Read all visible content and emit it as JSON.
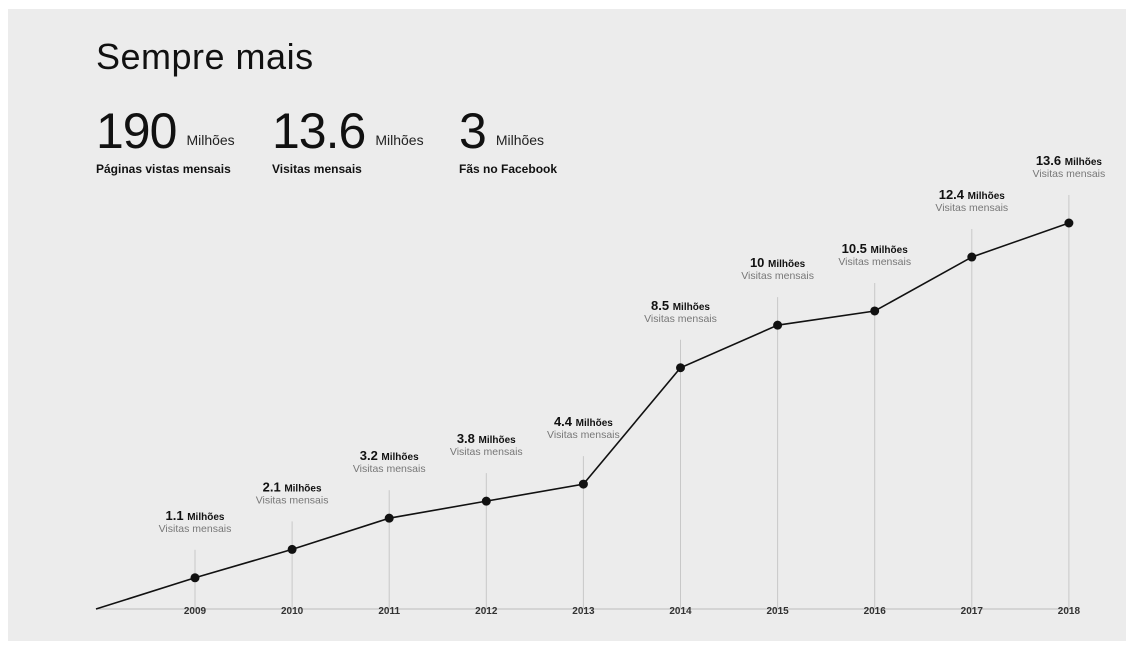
{
  "title": "Sempre mais",
  "stats": [
    {
      "value": "190",
      "unit": "Milhões",
      "label": "Páginas vistas mensais"
    },
    {
      "value": "13.6",
      "unit": "Milhões",
      "label": "Visitas mensais"
    },
    {
      "value": "3",
      "unit": "Milhões",
      "label": "Fãs no Facebook"
    }
  ],
  "chart_data": {
    "type": "line",
    "title": "",
    "xlabel": "",
    "ylabel": "",
    "x": [
      "2009",
      "2010",
      "2011",
      "2012",
      "2013",
      "2014",
      "2015",
      "2016",
      "2017",
      "2018"
    ],
    "series": [
      {
        "values": [
          1.1,
          2.1,
          3.2,
          3.8,
          4.4,
          8.5,
          10,
          10.5,
          12.4,
          13.6
        ]
      }
    ],
    "data_labels": [
      {
        "value": "1.1",
        "unit": "Milhões",
        "sub": "Visitas mensais"
      },
      {
        "value": "2.1",
        "unit": "Milhões",
        "sub": "Visitas mensais"
      },
      {
        "value": "3.2",
        "unit": "Milhões",
        "sub": "Visitas mensais"
      },
      {
        "value": "3.8",
        "unit": "Milhões",
        "sub": "Visitas mensais"
      },
      {
        "value": "4.4",
        "unit": "Milhões",
        "sub": "Visitas mensais"
      },
      {
        "value": "8.5",
        "unit": "Milhões",
        "sub": "Visitas mensais"
      },
      {
        "value": "10",
        "unit": "Milhões",
        "sub": "Visitas mensais"
      },
      {
        "value": "10.5",
        "unit": "Milhões",
        "sub": "Visitas mensais"
      },
      {
        "value": "12.4",
        "unit": "Milhões",
        "sub": "Visitas mensais"
      },
      {
        "value": "13.6",
        "unit": "Milhões",
        "sub": "Visitas mensais"
      }
    ],
    "ylim": [
      0,
      14.5
    ],
    "line_start_value": 0,
    "grid": false,
    "colors": {
      "line": "#111111",
      "point": "#111111",
      "guide": "#c8c8c8",
      "axis": "#bdbdbd"
    }
  }
}
